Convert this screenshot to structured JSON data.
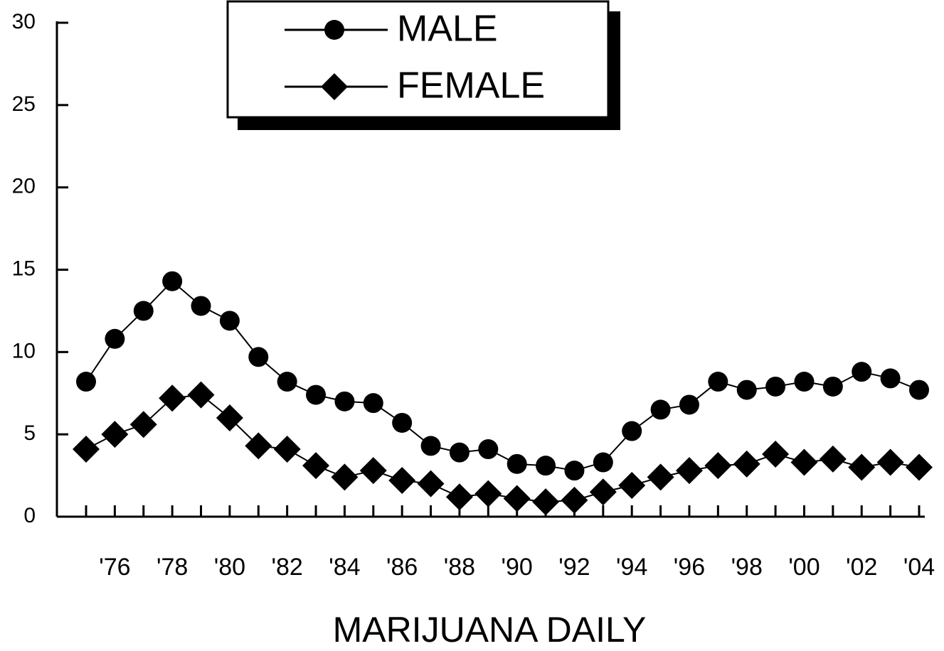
{
  "chart_data": {
    "type": "line",
    "xlabel": "MARIJUANA DAILY",
    "categories": [
      null,
      "'76",
      null,
      "'78",
      null,
      "'80",
      null,
      "'82",
      null,
      "'84",
      null,
      "'86",
      null,
      "'88",
      null,
      "'90",
      null,
      "'92",
      null,
      "'94",
      null,
      "'96",
      null,
      "'98",
      null,
      "'00",
      null,
      "'02",
      null,
      "'04"
    ],
    "series": [
      {
        "name": "MALE",
        "color": "#000000",
        "marker": "circle",
        "values": [
          8.2,
          10.8,
          12.5,
          14.3,
          12.8,
          11.9,
          9.7,
          8.2,
          7.4,
          7.0,
          6.9,
          5.7,
          4.3,
          3.9,
          4.1,
          3.2,
          3.1,
          2.8,
          3.3,
          5.2,
          6.5,
          6.8,
          8.2,
          7.7,
          7.9,
          8.2,
          7.9,
          8.8,
          8.4,
          7.7
        ]
      },
      {
        "name": "FEMALE",
        "color": "#000000",
        "marker": "diamond",
        "values": [
          4.1,
          5.0,
          5.6,
          7.2,
          7.4,
          6.0,
          4.3,
          4.1,
          3.1,
          2.4,
          2.8,
          2.2,
          2.0,
          1.2,
          1.4,
          1.1,
          0.9,
          1.0,
          1.5,
          1.9,
          2.4,
          2.8,
          3.1,
          3.2,
          3.8,
          3.3,
          3.5,
          3.0,
          3.3,
          3.0
        ]
      }
    ],
    "ylim": [
      0,
      30
    ],
    "yticks": [
      0,
      5,
      10,
      15,
      20,
      25,
      30
    ],
    "legend": "top"
  }
}
